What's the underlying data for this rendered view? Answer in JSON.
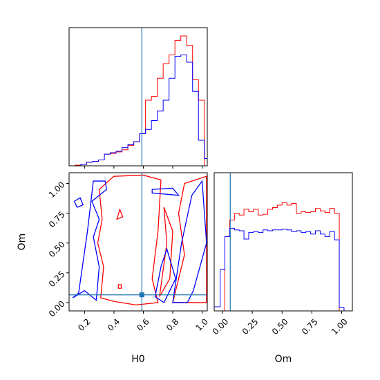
{
  "colors": {
    "red": "#ff0000",
    "blue": "#0000ff",
    "truth": "#1f77b4"
  },
  "chart_data": {
    "type": "corner",
    "parameters": [
      "H0",
      "Om"
    ],
    "truth": {
      "H0": 0.59,
      "Om": 0.065
    },
    "ranges": {
      "H0": [
        0.095,
        1.035
      ],
      "Om": [
        -0.07,
        1.09
      ]
    },
    "xlabel_H0": "H0",
    "ylabel_Om": "Om",
    "xlabel_Om": "Om",
    "ticks": {
      "H0": [
        "0.2",
        "0.4",
        "0.6",
        "0.8",
        "1.0"
      ],
      "Om": [
        "0.00",
        "0.25",
        "0.50",
        "0.75",
        "1.00"
      ]
    },
    "hist_H0": {
      "edges": [
        0.095,
        0.135,
        0.175,
        0.215,
        0.255,
        0.295,
        0.335,
        0.375,
        0.415,
        0.455,
        0.495,
        0.535,
        0.575,
        0.615,
        0.655,
        0.695,
        0.735,
        0.775,
        0.815,
        0.855,
        0.895,
        0.935,
        0.975,
        1.015,
        1.035
      ],
      "series": [
        {
          "color": "red",
          "values": [
            0,
            1,
            2,
            5,
            6,
            8,
            16,
            17,
            19,
            22,
            28,
            33,
            44,
            90,
            95,
            120,
            140,
            152,
            172,
            178,
            165,
            118,
            90,
            0
          ]
        },
        {
          "color": "blue",
          "values": [
            0,
            0,
            2,
            5,
            6,
            8,
            16,
            18,
            20,
            25,
            29,
            33,
            44,
            50,
            62,
            75,
            90,
            120,
            150,
            152,
            142,
            102,
            35,
            10
          ]
        }
      ]
    },
    "hist_Om": {
      "edges": [
        -0.07,
        -0.02,
        0.02,
        0.06,
        0.1,
        0.14,
        0.18,
        0.22,
        0.26,
        0.3,
        0.34,
        0.38,
        0.42,
        0.46,
        0.5,
        0.54,
        0.58,
        0.62,
        0.66,
        0.7,
        0.74,
        0.78,
        0.82,
        0.86,
        0.9,
        0.94,
        0.98,
        1.02,
        1.06,
        1.09
      ],
      "series": [
        {
          "color": "red",
          "values": [
            0,
            0,
            90,
            110,
            118,
            116,
            123,
            120,
            123,
            116,
            117,
            123,
            125,
            128,
            131,
            128,
            130,
            118,
            120,
            119,
            120,
            124,
            121,
            119,
            124,
            118,
            0,
            0,
            0
          ]
        },
        {
          "color": "blue",
          "values": [
            5,
            50,
            90,
            100,
            98,
            97,
            87,
            95,
            96,
            95,
            98,
            97,
            98,
            98,
            99,
            98,
            96,
            97,
            95,
            96,
            93,
            97,
            93,
            90,
            96,
            86,
            4,
            0,
            0
          ]
        }
      ]
    }
  }
}
